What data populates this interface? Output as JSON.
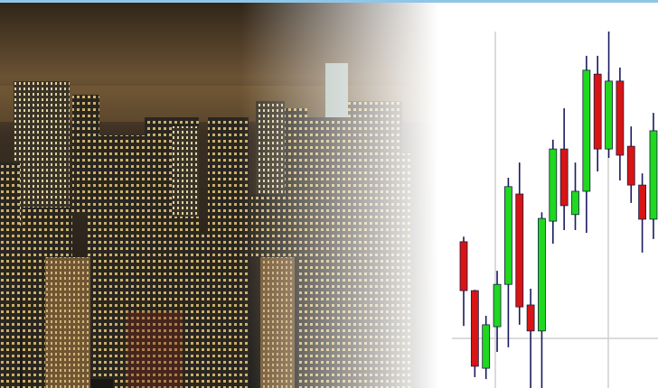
{
  "chart_data": {
    "type": "candlestick",
    "categories": [
      null,
      null,
      null,
      null,
      null,
      null,
      null,
      null,
      null,
      null,
      null,
      null,
      null,
      null,
      null,
      null,
      null,
      null
    ],
    "open": [
      37.7,
      25.1,
      5.1,
      15.8,
      26.7,
      50.0,
      21.4,
      14.7,
      43.0,
      61.6,
      44.7,
      50.7,
      80.9,
      61.6,
      79.1,
      62.3,
      52.3,
      43.5
    ],
    "close": [
      25.1,
      5.6,
      16.3,
      26.7,
      51.9,
      20.9,
      14.7,
      43.7,
      61.6,
      47.0,
      50.7,
      81.9,
      61.6,
      79.1,
      60.0,
      52.3,
      43.5,
      66.3
    ],
    "high": [
      39.0,
      25.3,
      18.6,
      30.2,
      54.2,
      58.1,
      25.6,
      45.3,
      64.0,
      72.1,
      58.1,
      85.6,
      85.6,
      91.9,
      82.6,
      67.4,
      55.3,
      70.9
    ],
    "low": [
      16.0,
      2.8,
      2.3,
      9.3,
      10.5,
      16.3,
      0,
      0,
      37.2,
      40.7,
      40.7,
      40.0,
      55.8,
      59.3,
      53.5,
      47.7,
      34.9,
      38.4
    ],
    "ylim": [
      0,
      100
    ],
    "up_color": "#1fd81f",
    "down_color": "#d81414"
  }
}
